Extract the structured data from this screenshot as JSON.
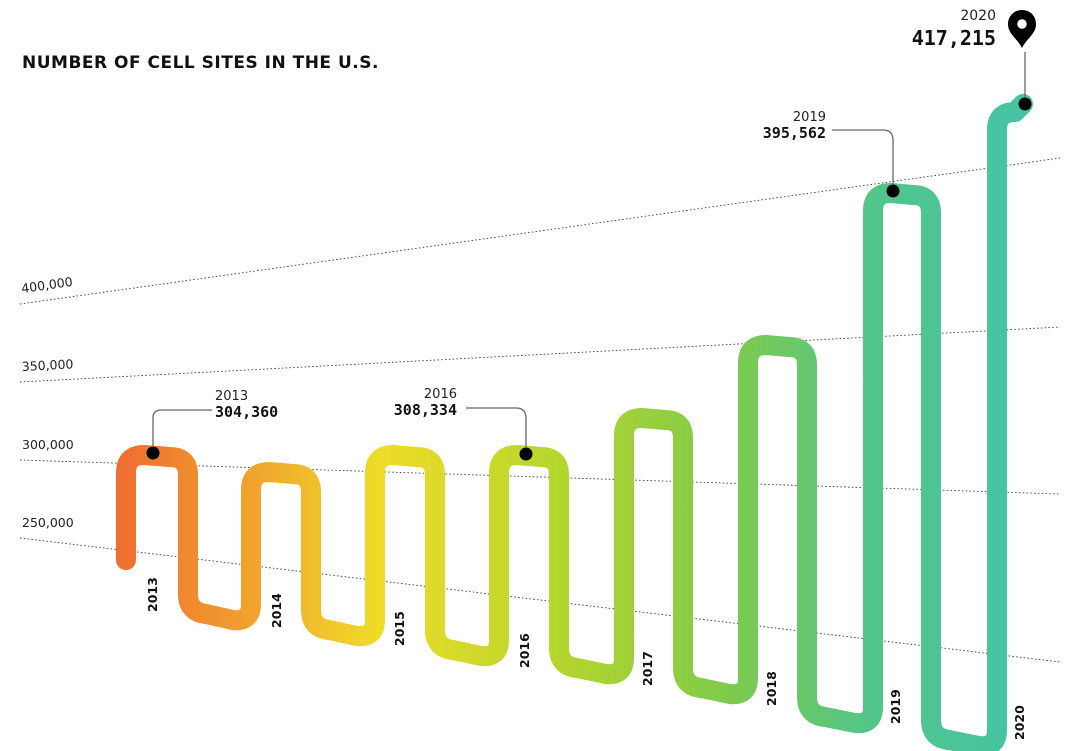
{
  "chart_data": {
    "type": "line",
    "title": "NUMBER OF CELL SITES IN THE U.S.",
    "categories": [
      "2013",
      "2014",
      "2015",
      "2016",
      "2017",
      "2018",
      "2019",
      "2020"
    ],
    "values": [
      304360,
      298000,
      307000,
      308334,
      330000,
      365000,
      395562,
      417215
    ],
    "y_gridlines": [
      "250,000",
      "300,000",
      "350,000",
      "400,000"
    ],
    "ylim": [
      250000,
      420000
    ],
    "grid": true,
    "callouts": [
      {
        "year": "2013",
        "value": "304,360"
      },
      {
        "year": "2016",
        "value": "308,334"
      },
      {
        "year": "2019",
        "value": "395,562"
      },
      {
        "year": "2020",
        "value": "417,215"
      }
    ],
    "colors": {
      "gradient": [
        "#ef6a30",
        "#f09a2e",
        "#f0dc28",
        "#b9d62c",
        "#7fcb4a",
        "#52c58a",
        "#43c4a6"
      ],
      "dot": "#000000",
      "leader": "#666666",
      "grid": "#444444"
    },
    "icons": {
      "end_marker": "map-pin-icon"
    }
  }
}
